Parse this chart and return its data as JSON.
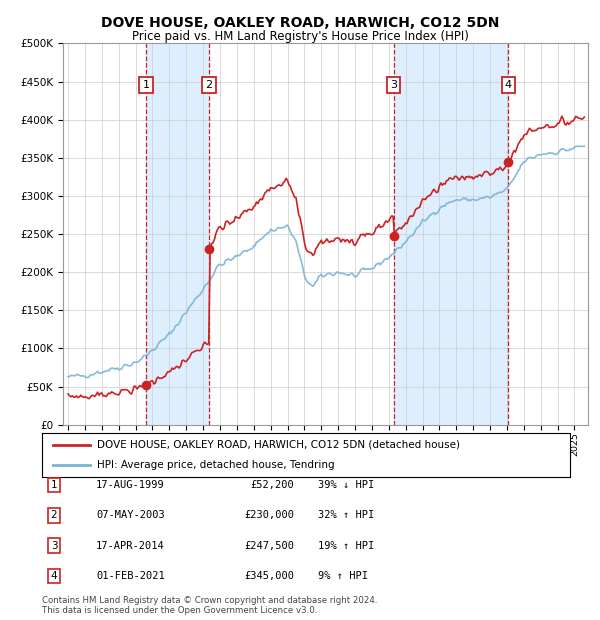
{
  "title": "DOVE HOUSE, OAKLEY ROAD, HARWICH, CO12 5DN",
  "subtitle": "Price paid vs. HM Land Registry's House Price Index (HPI)",
  "footer": "Contains HM Land Registry data © Crown copyright and database right 2024.\nThis data is licensed under the Open Government Licence v3.0.",
  "legend_line1": "DOVE HOUSE, OAKLEY ROAD, HARWICH, CO12 5DN (detached house)",
  "legend_line2": "HPI: Average price, detached house, Tendring",
  "transactions": [
    {
      "num": 1,
      "label_date": "17-AUG-1999",
      "price": 52200,
      "price_str": "£52,200",
      "pct": "39%",
      "dir": "↓",
      "year_x": 1999.62
    },
    {
      "num": 2,
      "label_date": "07-MAY-2003",
      "price": 230000,
      "price_str": "£230,000",
      "pct": "32%",
      "dir": "↑",
      "year_x": 2003.35
    },
    {
      "num": 3,
      "label_date": "17-APR-2014",
      "price": 247500,
      "price_str": "£247,500",
      "pct": "19%",
      "dir": "↑",
      "year_x": 2014.29
    },
    {
      "num": 4,
      "label_date": "01-FEB-2021",
      "price": 345000,
      "price_str": "£345,000",
      "pct": "9%",
      "dir": "↑",
      "year_x": 2021.08
    }
  ],
  "hpi_color": "#7ab3d4",
  "property_color": "#cc2222",
  "marker_color": "#cc2222",
  "vline_color": "#cc2222",
  "highlight_color": "#ddeeff",
  "ylim": [
    0,
    500000
  ],
  "yticks": [
    0,
    50000,
    100000,
    150000,
    200000,
    250000,
    300000,
    350000,
    400000,
    450000,
    500000
  ],
  "xlim_start": 1994.7,
  "xlim_end": 2025.8,
  "background_color": "#ffffff",
  "grid_color": "#cccccc"
}
